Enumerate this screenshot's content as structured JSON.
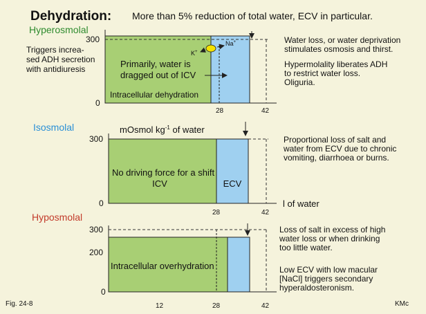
{
  "header": {
    "title": "Dehydration:",
    "subtitle": "More than 5% reduction of total water, ECV in particular."
  },
  "colors": {
    "background": "#f5f3dc",
    "icv": "#a8cf74",
    "ecv": "#9fd0f0",
    "hyperosmolal": "#2e8b2e",
    "isosmolal": "#2a8fd6",
    "hyposmolal": "#c23a2a",
    "ion_marker": "#f4e200"
  },
  "panels": {
    "hyper": {
      "heading": "Hyperosmolal",
      "left_note": [
        "Triggers increa-",
        "sed ADH secretion",
        "with antidiuresis"
      ],
      "y_ticks": [
        "300",
        "0"
      ],
      "x_ticks": [
        "28",
        "42"
      ],
      "icv_text": [
        "Primarily, water is",
        "dragged out of ICV"
      ],
      "icv_caption": "Intracellular dehydration",
      "ion_k": "K",
      "ion_na": "Na",
      "right_text": [
        "Water loss, or water deprivation",
        "stimulates osmosis and thirst."
      ],
      "right_text2": [
        "Hypermolality liberates ADH",
        "to restrict water loss.",
        "Oliguria."
      ]
    },
    "iso": {
      "heading": "Isosmolal",
      "axis_label_main": "mOsmol kg",
      "axis_label_sup": "-1",
      "axis_label_tail": " of water",
      "y_ticks": [
        "300",
        "0"
      ],
      "x_ticks": [
        "28",
        "42"
      ],
      "x_axis_label": "l of water",
      "icv_text": [
        "No driving force for a shift",
        "ICV"
      ],
      "ecv_label": "ECV",
      "right_text": [
        "Proportional loss of salt and",
        "water from ECV due to chronic",
        "vomiting, diarrhoea or burns."
      ]
    },
    "hypo": {
      "heading": "Hyposmolal",
      "y_ticks": [
        "300",
        "200",
        "0"
      ],
      "x_ticks": [
        "12",
        "28",
        "42"
      ],
      "icv_caption": "Intracellular overhydration",
      "right_text": [
        "Loss of salt in excess of high",
        "water loss or when drinking",
        "too little water."
      ],
      "right_text2": [
        "Low ECV with low macular",
        "[NaCl] triggers secondary",
        "hyperaldosteronism."
      ]
    }
  },
  "footer": {
    "figure_label": "Fig. 24-8",
    "credit": "KMc"
  }
}
